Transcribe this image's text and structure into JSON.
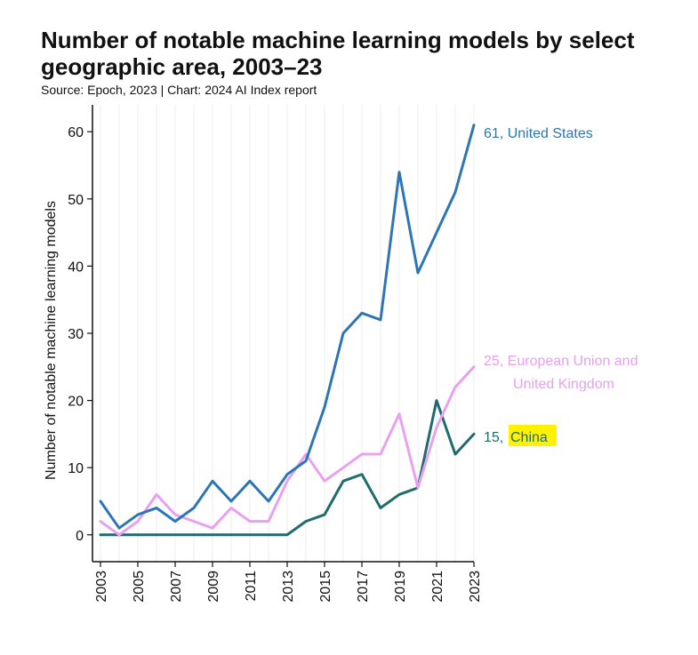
{
  "title": "Number of notable machine learning models by select geographic area, 2003–23",
  "subtitle": "Source: Epoch, 2023 | Chart: 2024 AI Index report",
  "chart_data": {
    "type": "line",
    "ylabel": "Number of notable machine learning models",
    "xlabel": "",
    "x": [
      2003,
      2004,
      2005,
      2006,
      2007,
      2008,
      2009,
      2010,
      2011,
      2012,
      2013,
      2014,
      2015,
      2016,
      2017,
      2018,
      2019,
      2020,
      2021,
      2022,
      2023
    ],
    "x_tick_labels": [
      "2003",
      "2005",
      "2007",
      "2009",
      "2011",
      "2013",
      "2015",
      "2017",
      "2019",
      "2021",
      "2023"
    ],
    "y_ticks": [
      0,
      10,
      20,
      30,
      40,
      50,
      60
    ],
    "ylim": [
      -4,
      64
    ],
    "grid": "vertical",
    "series": [
      {
        "name": "United States",
        "color": "#2e75b6",
        "values": [
          5,
          1,
          3,
          4,
          2,
          4,
          8,
          5,
          8,
          5,
          9,
          11,
          19,
          30,
          33,
          32,
          54,
          39,
          45,
          51,
          61
        ],
        "end_label": [
          "61, United States"
        ]
      },
      {
        "name": "European Union and United Kingdom",
        "color": "#e8a0f0",
        "values": [
          2,
          0,
          2,
          6,
          3,
          2,
          1,
          4,
          2,
          2,
          8,
          12,
          8,
          10,
          12,
          12,
          18,
          7,
          16,
          22,
          25
        ],
        "end_label": [
          "25, European Union and",
          "United Kingdom"
        ]
      },
      {
        "name": "China",
        "color": "#1f6b6e",
        "values": [
          0,
          0,
          0,
          0,
          0,
          0,
          0,
          0,
          0,
          0,
          0,
          2,
          3,
          8,
          9,
          4,
          6,
          7,
          20,
          12,
          15
        ],
        "end_label": [
          "15, ",
          "China"
        ],
        "highlight_color": "#fff200"
      }
    ]
  }
}
